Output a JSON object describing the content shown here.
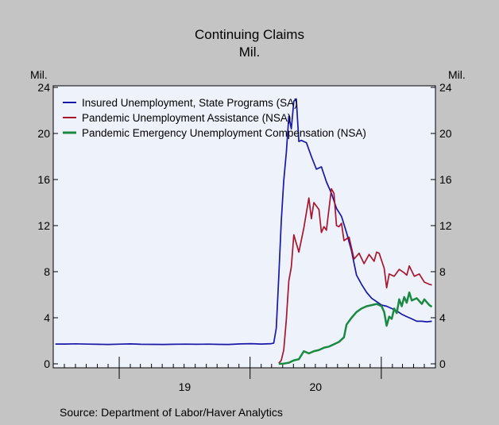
{
  "chart_data": {
    "type": "line",
    "title": "Continuing Claims",
    "subtitle": "Mil.",
    "ylabel_left": "Mil.",
    "ylabel_right": "Mil.",
    "source": "Source: Department of Labor/Haver Analytics",
    "ylim": [
      0,
      24
    ],
    "yticks": [
      0,
      4,
      8,
      12,
      16,
      20,
      24
    ],
    "xlim": [
      "2018-07",
      "2021-06"
    ],
    "xtick_labels": [
      {
        "label": "19",
        "year": 2019
      },
      {
        "label": "20",
        "year": 2020
      }
    ],
    "grid": false,
    "legend_position": "top-left",
    "colors": {
      "plot_background": "#eef3fb",
      "frame_background": "#c4c4c4"
    },
    "series": [
      {
        "name": "Insured Unemployment, State Programs (SA)",
        "color": "#1717a8",
        "points": [
          [
            "2018-07-07",
            1.72
          ],
          [
            "2018-08-04",
            1.72
          ],
          [
            "2018-09-01",
            1.74
          ],
          [
            "2018-10-06",
            1.71
          ],
          [
            "2018-11-03",
            1.7
          ],
          [
            "2018-12-01",
            1.68
          ],
          [
            "2019-01-05",
            1.71
          ],
          [
            "2019-02-02",
            1.73
          ],
          [
            "2019-03-02",
            1.7
          ],
          [
            "2019-04-06",
            1.69
          ],
          [
            "2019-05-04",
            1.68
          ],
          [
            "2019-06-01",
            1.7
          ],
          [
            "2019-07-06",
            1.71
          ],
          [
            "2019-08-03",
            1.7
          ],
          [
            "2019-09-07",
            1.71
          ],
          [
            "2019-10-05",
            1.69
          ],
          [
            "2019-11-02",
            1.68
          ],
          [
            "2019-12-07",
            1.73
          ],
          [
            "2020-01-04",
            1.75
          ],
          [
            "2020-02-01",
            1.72
          ],
          [
            "2020-02-29",
            1.75
          ],
          [
            "2020-03-07",
            1.8
          ],
          [
            "2020-03-14",
            3.1
          ],
          [
            "2020-03-21",
            7.5
          ],
          [
            "2020-03-28",
            12.4
          ],
          [
            "2020-04-04",
            15.9
          ],
          [
            "2020-04-11",
            18.3
          ],
          [
            "2020-04-18",
            21.5
          ],
          [
            "2020-04-25",
            20.4
          ],
          [
            "2020-05-02",
            22.8
          ],
          [
            "2020-05-09",
            23.0
          ],
          [
            "2020-05-16",
            19.3
          ],
          [
            "2020-05-23",
            19.4
          ],
          [
            "2020-06-06",
            19.2
          ],
          [
            "2020-06-20",
            18.0
          ],
          [
            "2020-07-04",
            16.9
          ],
          [
            "2020-07-18",
            17.1
          ],
          [
            "2020-08-01",
            15.8
          ],
          [
            "2020-08-15",
            14.8
          ],
          [
            "2020-08-29",
            13.5
          ],
          [
            "2020-09-12",
            12.8
          ],
          [
            "2020-09-26",
            11.4
          ],
          [
            "2020-10-10",
            9.8
          ],
          [
            "2020-10-24",
            7.7
          ],
          [
            "2020-11-07",
            6.9
          ],
          [
            "2020-11-21",
            6.2
          ],
          [
            "2020-12-05",
            5.7
          ],
          [
            "2020-12-19",
            5.4
          ],
          [
            "2021-01-02",
            5.1
          ],
          [
            "2021-01-16",
            5.0
          ],
          [
            "2021-01-30",
            4.8
          ],
          [
            "2021-02-13",
            4.6
          ],
          [
            "2021-02-27",
            4.3
          ],
          [
            "2021-03-13",
            4.1
          ],
          [
            "2021-03-27",
            3.9
          ],
          [
            "2021-04-10",
            3.7
          ],
          [
            "2021-04-24",
            3.7
          ],
          [
            "2021-05-08",
            3.65
          ],
          [
            "2021-05-22",
            3.7
          ]
        ]
      },
      {
        "name": "Pandemic Unemployment Assistance (NSA)",
        "color": "#a8162e",
        "points": [
          [
            "2020-03-21",
            0.05
          ],
          [
            "2020-03-28",
            0.3
          ],
          [
            "2020-04-04",
            1.2
          ],
          [
            "2020-04-11",
            3.8
          ],
          [
            "2020-04-18",
            7.2
          ],
          [
            "2020-04-25",
            8.4
          ],
          [
            "2020-05-02",
            11.2
          ],
          [
            "2020-05-16",
            9.7
          ],
          [
            "2020-05-30",
            11.8
          ],
          [
            "2020-06-13",
            14.4
          ],
          [
            "2020-06-20",
            12.6
          ],
          [
            "2020-06-27",
            14.0
          ],
          [
            "2020-07-11",
            13.4
          ],
          [
            "2020-07-18",
            11.4
          ],
          [
            "2020-07-25",
            11.9
          ],
          [
            "2020-08-01",
            11.6
          ],
          [
            "2020-08-15",
            15.2
          ],
          [
            "2020-08-22",
            14.8
          ],
          [
            "2020-08-29",
            12.0
          ],
          [
            "2020-09-05",
            11.9
          ],
          [
            "2020-09-12",
            12.2
          ],
          [
            "2020-09-19",
            10.7
          ],
          [
            "2020-10-03",
            11.0
          ],
          [
            "2020-10-17",
            9.1
          ],
          [
            "2020-10-31",
            9.6
          ],
          [
            "2020-11-14",
            8.7
          ],
          [
            "2020-11-28",
            9.5
          ],
          [
            "2020-12-12",
            8.9
          ],
          [
            "2020-12-19",
            9.7
          ],
          [
            "2020-12-26",
            9.6
          ],
          [
            "2021-01-09",
            8.3
          ],
          [
            "2021-01-16",
            6.6
          ],
          [
            "2021-01-23",
            7.8
          ],
          [
            "2021-02-06",
            7.6
          ],
          [
            "2021-02-20",
            8.2
          ],
          [
            "2021-03-06",
            7.9
          ],
          [
            "2021-03-13",
            7.7
          ],
          [
            "2021-03-20",
            8.5
          ],
          [
            "2021-04-03",
            7.6
          ],
          [
            "2021-04-17",
            7.8
          ],
          [
            "2021-05-01",
            7.1
          ],
          [
            "2021-05-15",
            6.9
          ],
          [
            "2021-05-22",
            6.85
          ]
        ]
      },
      {
        "name": "Pandemic Emergency Unemployment Compensation (NSA)",
        "color": "#1a8a42",
        "points": [
          [
            "2020-03-21",
            0.0
          ],
          [
            "2020-04-04",
            0.02
          ],
          [
            "2020-04-18",
            0.1
          ],
          [
            "2020-05-02",
            0.3
          ],
          [
            "2020-05-16",
            0.4
          ],
          [
            "2020-05-30",
            1.1
          ],
          [
            "2020-06-13",
            0.9
          ],
          [
            "2020-06-27",
            1.1
          ],
          [
            "2020-07-11",
            1.2
          ],
          [
            "2020-07-25",
            1.4
          ],
          [
            "2020-08-08",
            1.5
          ],
          [
            "2020-08-22",
            1.7
          ],
          [
            "2020-09-05",
            1.9
          ],
          [
            "2020-09-19",
            2.3
          ],
          [
            "2020-09-26",
            3.4
          ],
          [
            "2020-10-10",
            4.0
          ],
          [
            "2020-10-24",
            4.5
          ],
          [
            "2020-11-07",
            4.8
          ],
          [
            "2020-11-21",
            5.0
          ],
          [
            "2020-12-05",
            5.1
          ],
          [
            "2020-12-19",
            5.2
          ],
          [
            "2021-01-02",
            5.0
          ],
          [
            "2021-01-09",
            4.5
          ],
          [
            "2021-01-16",
            3.3
          ],
          [
            "2021-01-23",
            4.1
          ],
          [
            "2021-01-30",
            3.9
          ],
          [
            "2021-02-06",
            4.8
          ],
          [
            "2021-02-13",
            4.4
          ],
          [
            "2021-02-20",
            5.6
          ],
          [
            "2021-02-27",
            5.0
          ],
          [
            "2021-03-06",
            5.8
          ],
          [
            "2021-03-13",
            5.3
          ],
          [
            "2021-03-20",
            6.2
          ],
          [
            "2021-03-27",
            5.5
          ],
          [
            "2021-04-10",
            5.7
          ],
          [
            "2021-04-24",
            5.2
          ],
          [
            "2021-05-01",
            5.6
          ],
          [
            "2021-05-15",
            5.1
          ],
          [
            "2021-05-22",
            4.95
          ]
        ]
      }
    ]
  }
}
